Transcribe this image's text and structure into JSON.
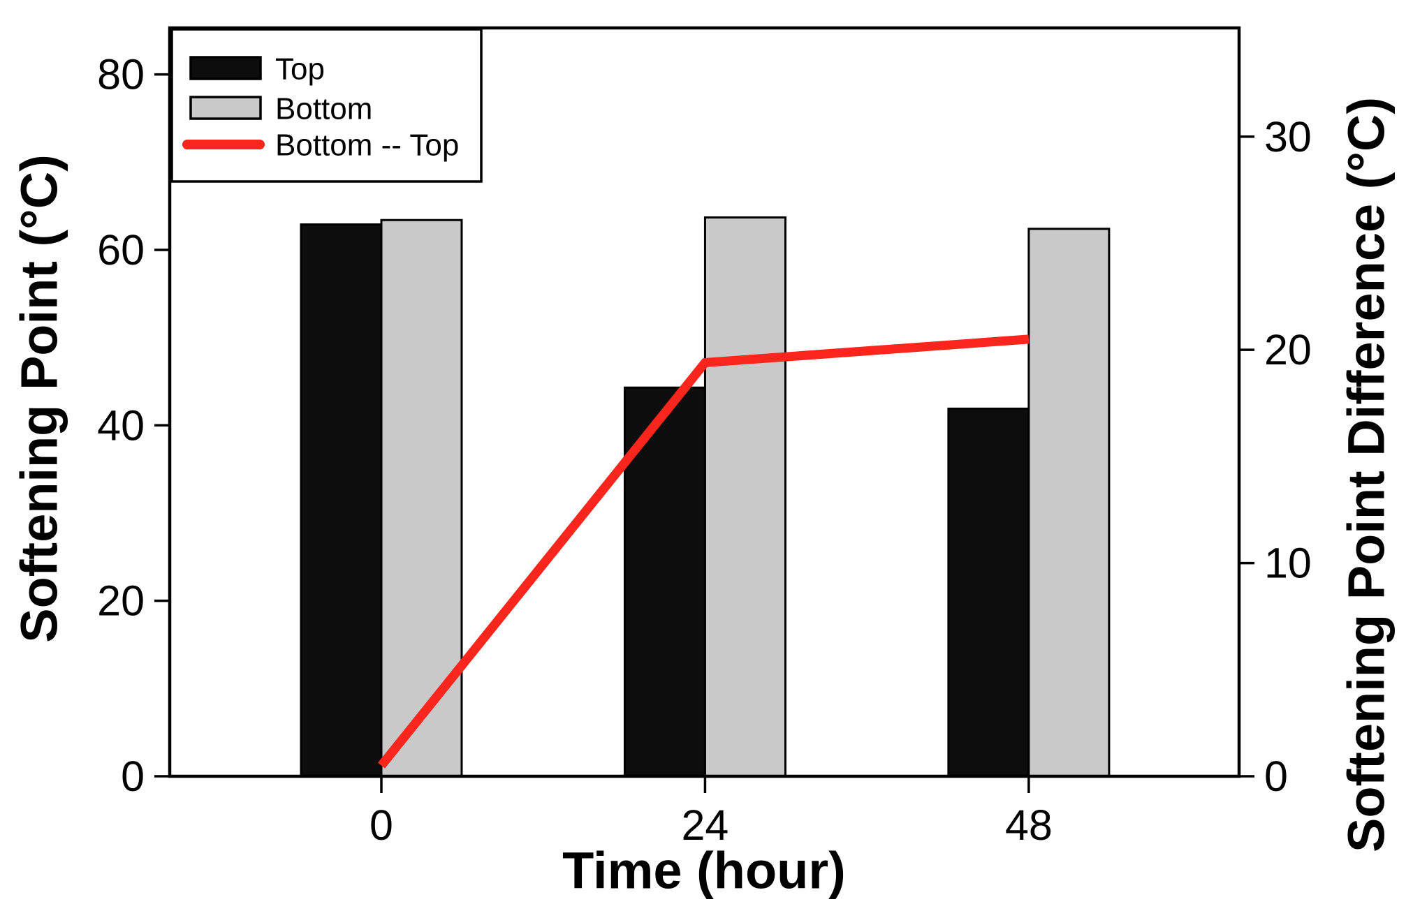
{
  "figure": {
    "background": "#ffffff",
    "frame_color": "#000000"
  },
  "axes": {
    "x": {
      "title": "Time (hour)",
      "tick_labels": [
        "0",
        "24",
        "48"
      ]
    },
    "left": {
      "title": "Softening Point (°C)",
      "tick_labels": [
        "0",
        "20",
        "40",
        "60",
        "80"
      ]
    },
    "right": {
      "title": "Softening Point Difference (°C)",
      "tick_labels": [
        "0",
        "10",
        "20",
        "30"
      ]
    }
  },
  "legend": {
    "items": [
      {
        "label": "Top",
        "swatch": "black-bar-swatch",
        "color": "#0d0d0d"
      },
      {
        "label": "Bottom",
        "swatch": "gray-bar-swatch",
        "color": "#c9c9c9"
      },
      {
        "label": "Bottom -- Top",
        "swatch": "red-line-swatch",
        "color": "#fa251c"
      }
    ]
  },
  "chart_data": {
    "type": "bar",
    "categories": [
      0,
      24,
      48
    ],
    "series": [
      {
        "name": "Top",
        "type": "bar",
        "axis": "left",
        "color": "#0d0d0d",
        "values": [
          62.9,
          44.3,
          41.9
        ]
      },
      {
        "name": "Bottom",
        "type": "bar",
        "axis": "left",
        "color": "#c9c9c9",
        "values": [
          63.4,
          63.7,
          62.4
        ]
      },
      {
        "name": "Bottom -- Top",
        "type": "line",
        "axis": "right",
        "color": "#fa251c",
        "values": [
          0.5,
          19.4,
          20.5
        ]
      }
    ],
    "title": "",
    "xlabel": "Time (hour)",
    "ylabel": "Softening Point (°C)",
    "ylabel_right": "Softening Point Difference (°C)",
    "xticks": [
      0,
      24,
      48
    ],
    "yticks_left": [
      0,
      20,
      40,
      60,
      80
    ],
    "yticks_right": [
      0,
      10,
      20,
      30
    ],
    "ylim_left": [
      0,
      85.3
    ],
    "ylim_right": [
      0,
      35.1
    ],
    "bar_width_hours": 6,
    "grid": false,
    "legend_position": "top-left"
  }
}
